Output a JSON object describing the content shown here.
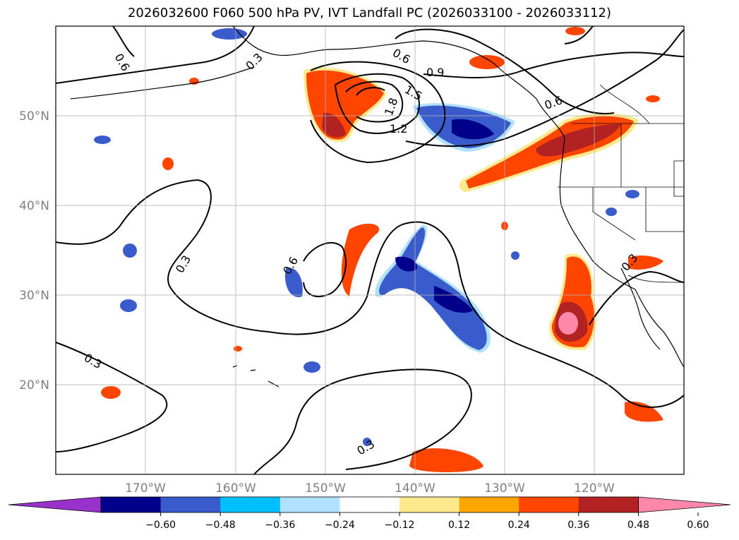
{
  "title": "2026032600 F060 500 hPa PV, IVT Landfall PC (2026033100 - 2026033112)",
  "map": {
    "projection": "PlateCarree",
    "lon_range": [
      -180,
      -110
    ],
    "lat_range": [
      10,
      60
    ],
    "lon_ticks": [
      {
        "value": -170,
        "label": "170°W"
      },
      {
        "value": -160,
        "label": "160°W"
      },
      {
        "value": -150,
        "label": "150°W"
      },
      {
        "value": -140,
        "label": "140°W"
      },
      {
        "value": -130,
        "label": "130°W"
      },
      {
        "value": -120,
        "label": "120°W"
      }
    ],
    "lat_ticks": [
      {
        "value": 20,
        "label": "20°N"
      },
      {
        "value": 30,
        "label": "30°N"
      },
      {
        "value": 40,
        "label": "40°N"
      },
      {
        "value": 50,
        "label": "50°N"
      }
    ],
    "gridlines": true,
    "contour_labels": [
      "0.6",
      "0.3",
      "0.6",
      "0.9",
      "1.5",
      "1.8",
      "1.2",
      "0.6",
      "0.3",
      "0.6",
      "0.3",
      "0.3",
      "0.3"
    ]
  },
  "colorbar": {
    "ticks": [
      "−0.60",
      "−0.48",
      "−0.36",
      "−0.24",
      "−0.12",
      "0.12",
      "0.24",
      "0.36",
      "0.48",
      "0.60"
    ],
    "colors": [
      "#9932cc",
      "#00008b",
      "#3a5bcc",
      "#00bfff",
      "#b0e2ff",
      "#ffffff",
      "#ffe98c",
      "#ffa500",
      "#ff4500",
      "#b22222",
      "#ff88aa"
    ]
  }
}
